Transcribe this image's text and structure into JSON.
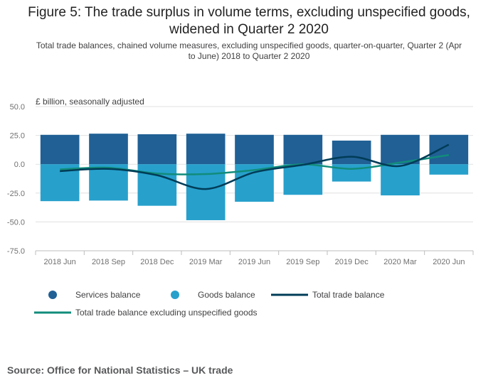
{
  "title_line1": "Figure 5: The trade surplus in volume terms, excluding unspecified goods,",
  "title_line2": "widened in Quarter 2 2020",
  "subtitle_line1": "Total trade balances, chained volume measures, excluding unspecified goods, quarter-on-quarter, Quarter 2 (Apr",
  "subtitle_line2": "to June) 2018 to Quarter 2 2020",
  "source": "Source: Office for National Statistics – UK trade",
  "colors": {
    "services": "#206095",
    "goods": "#27a0cc",
    "total": "#003c57",
    "total_excl": "#118c7b",
    "grid": "#e0e0e0",
    "axis_text": "#707070"
  },
  "chart_data": {
    "type": "bar",
    "ylabel": "£ billion, seasonally adjusted",
    "ylim": [
      -75,
      50
    ],
    "yticks": [
      50,
      25,
      0,
      -25,
      -50,
      -75
    ],
    "ytick_labels": [
      "50.0",
      "25.0",
      "0.0",
      "-25.0",
      "-50.0",
      "-75.0"
    ],
    "categories": [
      "2018 Jun",
      "2018 Sep",
      "2018 Dec",
      "2019 Mar",
      "2019 Jun",
      "2019 Sep",
      "2019 Dec",
      "2020 Mar",
      "2020 Jun"
    ],
    "grid": true,
    "legend_position": "bottom",
    "series": [
      {
        "name": "Services balance",
        "kind": "bar",
        "color": "#206095",
        "values": [
          25.5,
          26.5,
          26.0,
          26.5,
          25.5,
          25.5,
          20.5,
          25.5,
          25.5
        ]
      },
      {
        "name": "Goods balance",
        "kind": "bar",
        "color": "#27a0cc",
        "values": [
          -32.0,
          -31.5,
          -36.0,
          -48.5,
          -32.5,
          -26.5,
          -15.0,
          -27.0,
          -9.0
        ]
      },
      {
        "name": "Total trade balance",
        "kind": "line",
        "color": "#003c57",
        "values": [
          -6.0,
          -4.0,
          -9.5,
          -21.5,
          -7.0,
          -0.5,
          6.5,
          -1.5,
          17.0
        ]
      },
      {
        "name": "Total trade balance excluding unspecified goods",
        "kind": "line",
        "color": "#118c7b",
        "values": [
          -4.5,
          -3.0,
          -8.0,
          -8.5,
          -5.0,
          0.0,
          -4.0,
          1.5,
          8.0
        ]
      }
    ]
  }
}
